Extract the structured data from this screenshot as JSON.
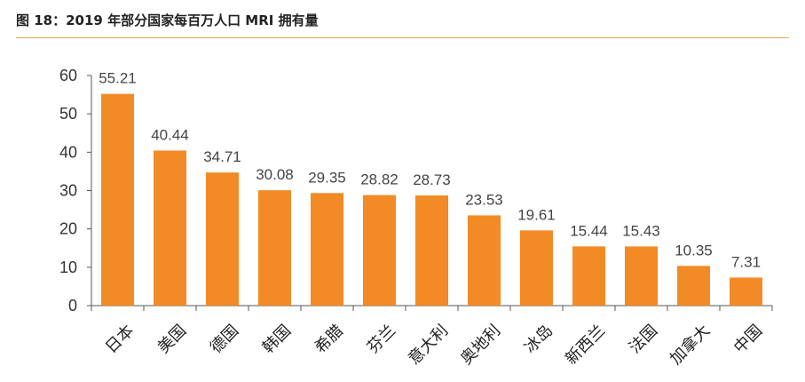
{
  "figure": {
    "title": "图 18：2019 年部分国家每百万人口 MRI 拥有量"
  },
  "colors": {
    "bar": "#f28a26",
    "axis": "#555555",
    "rule": "#f0a460"
  },
  "chart_data": {
    "type": "bar",
    "title": "图 18：2019 年部分国家每百万人口 MRI 拥有量",
    "xlabel": "",
    "ylabel": "",
    "ylim": [
      0,
      60
    ],
    "yticks": [
      0,
      10,
      20,
      30,
      40,
      50,
      60
    ],
    "grid": false,
    "categories": [
      "日本",
      "美国",
      "德国",
      "韩国",
      "希腊",
      "芬兰",
      "意大利",
      "奥地利",
      "冰岛",
      "新西兰",
      "法国",
      "加拿大",
      "中国"
    ],
    "values": [
      55.21,
      40.44,
      34.71,
      30.08,
      29.35,
      28.82,
      28.73,
      23.53,
      19.61,
      15.44,
      15.43,
      10.35,
      7.31
    ],
    "value_labels": [
      "55.21",
      "40.44",
      "34.71",
      "30.08",
      "29.35",
      "28.82",
      "28.73",
      "23.53",
      "19.61",
      "15.44",
      "15.43",
      "10.35",
      "7.31"
    ]
  }
}
